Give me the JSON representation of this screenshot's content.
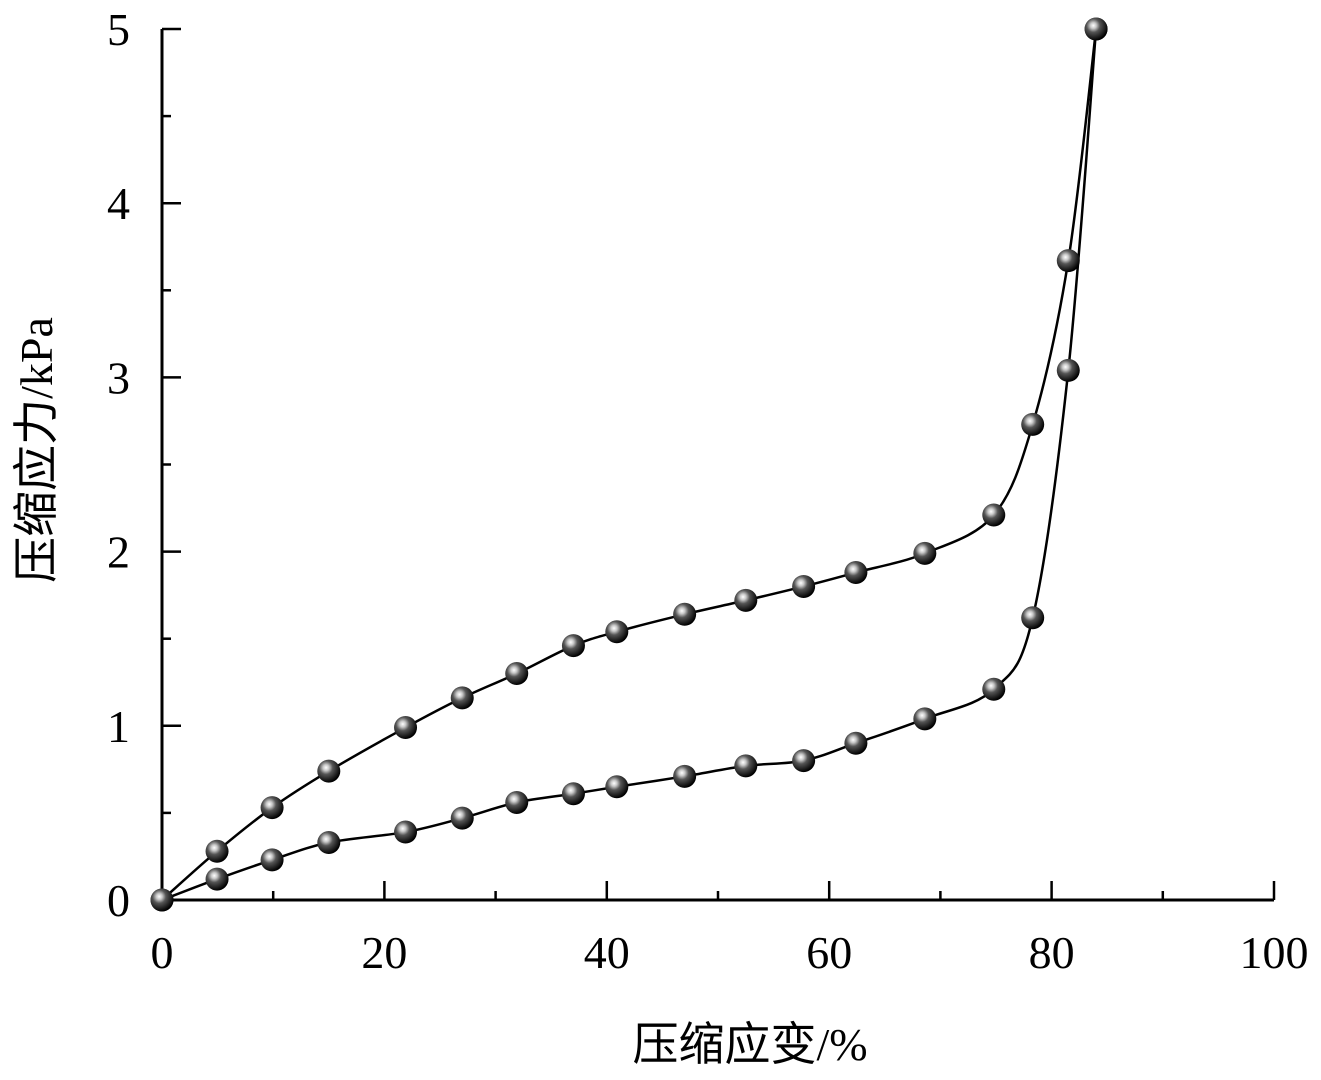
{
  "chart_data": {
    "type": "line",
    "title": "",
    "xlabel": "压缩应变/%",
    "ylabel": "压缩应力/kPa",
    "xlim": [
      0,
      100
    ],
    "ylim": [
      0,
      5
    ],
    "xticks": [
      "0",
      "20",
      "40",
      "60",
      "80",
      "100"
    ],
    "yticks": [
      "0",
      "1",
      "2",
      "3",
      "4",
      "5"
    ],
    "grid": false,
    "marker": "shaded-sphere",
    "line_color": "#000000",
    "series": [
      {
        "x": [
          0,
          4.95,
          9.9,
          15.0,
          21.9,
          27.0,
          31.9,
          37.0,
          40.9,
          47.0,
          52.5,
          57.7,
          62.4,
          68.6,
          74.8,
          78.3,
          81.5,
          84.0
        ],
        "y": [
          0,
          0.28,
          0.53,
          0.74,
          0.99,
          1.16,
          1.3,
          1.46,
          1.54,
          1.64,
          1.72,
          1.8,
          1.88,
          1.99,
          2.21,
          2.73,
          3.67,
          5.0
        ]
      },
      {
        "x": [
          0,
          4.95,
          9.9,
          15.0,
          21.9,
          27.0,
          31.9,
          37.0,
          40.9,
          47.0,
          52.5,
          57.7,
          62.4,
          68.6,
          74.8,
          78.3,
          81.5,
          84.0
        ],
        "y": [
          0,
          0.12,
          0.23,
          0.33,
          0.39,
          0.47,
          0.56,
          0.61,
          0.65,
          0.71,
          0.77,
          0.8,
          0.9,
          1.04,
          1.21,
          1.62,
          3.04,
          5.0
        ]
      }
    ]
  }
}
